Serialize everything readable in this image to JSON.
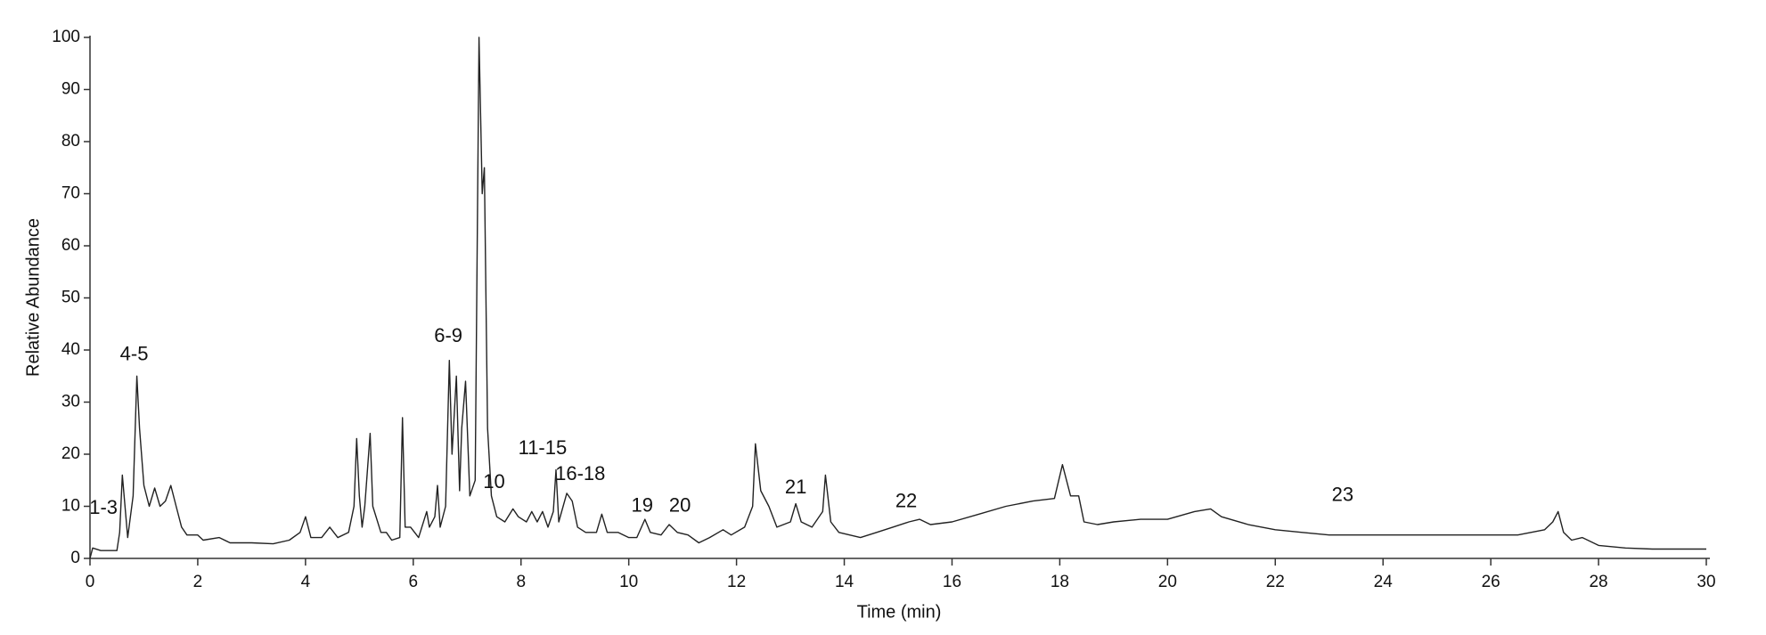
{
  "chart_data": {
    "type": "line",
    "xlabel": "Time (min)",
    "ylabel": "Relative Abundance",
    "color": "#222222",
    "x": [
      0,
      0.05,
      0.2,
      0.5,
      0.55,
      0.6,
      0.65,
      0.7,
      0.8,
      0.87,
      0.92,
      1.0,
      1.1,
      1.2,
      1.3,
      1.4,
      1.5,
      1.6,
      1.7,
      1.8,
      2.0,
      2.1,
      2.4,
      2.6,
      3.0,
      3.4,
      3.7,
      3.9,
      4.0,
      4.1,
      4.3,
      4.45,
      4.6,
      4.8,
      4.9,
      4.95,
      5.0,
      5.05,
      5.1,
      5.2,
      5.25,
      5.4,
      5.5,
      5.6,
      5.75,
      5.8,
      5.85,
      5.95,
      6.1,
      6.25,
      6.3,
      6.4,
      6.45,
      6.5,
      6.6,
      6.67,
      6.72,
      6.8,
      6.86,
      6.9,
      6.97,
      7.05,
      7.15,
      7.22,
      7.28,
      7.32,
      7.38,
      7.45,
      7.55,
      7.7,
      7.85,
      7.95,
      8.1,
      8.2,
      8.3,
      8.4,
      8.5,
      8.6,
      8.65,
      8.7,
      8.85,
      8.95,
      9.05,
      9.2,
      9.4,
      9.5,
      9.6,
      9.8,
      10.0,
      10.15,
      10.3,
      10.4,
      10.6,
      10.75,
      10.9,
      11.1,
      11.3,
      11.5,
      11.75,
      11.9,
      12.15,
      12.3,
      12.35,
      12.45,
      12.6,
      12.75,
      13.0,
      13.1,
      13.2,
      13.4,
      13.6,
      13.65,
      13.75,
      13.9,
      14.1,
      14.3,
      14.6,
      14.9,
      15.2,
      15.4,
      15.6,
      16.0,
      16.5,
      17.0,
      17.5,
      17.9,
      18.05,
      18.2,
      18.35,
      18.45,
      18.7,
      19.0,
      19.5,
      20.0,
      20.5,
      20.8,
      21.0,
      21.5,
      22.0,
      22.5,
      23.0,
      24.0,
      25.0,
      26.0,
      26.5,
      27.0,
      27.15,
      27.25,
      27.35,
      27.5,
      27.7,
      28.0,
      28.5,
      29.0,
      30.0
    ],
    "values": [
      0,
      2,
      1.5,
      1.5,
      5,
      16,
      10,
      4,
      12,
      35,
      25,
      14,
      10,
      13.5,
      10,
      11,
      14,
      10,
      6,
      4.5,
      4.5,
      3.5,
      4,
      3,
      3,
      2.8,
      3.5,
      5,
      8,
      4,
      4,
      6,
      4,
      5,
      10,
      23,
      12,
      6,
      10,
      24,
      10,
      5,
      5,
      3.5,
      4,
      27,
      6,
      6,
      4,
      9,
      6,
      8,
      14,
      6,
      10,
      38,
      20,
      35,
      13,
      25,
      34,
      12,
      15,
      100,
      70,
      75,
      25,
      12,
      8,
      7,
      9.5,
      8,
      7,
      9,
      7,
      9,
      6,
      9,
      17,
      7,
      12.5,
      11,
      6,
      5,
      5,
      8.5,
      5,
      5,
      4,
      4,
      7.5,
      5,
      4.5,
      6.5,
      5,
      4.5,
      3,
      4,
      5.5,
      4.5,
      6,
      10,
      22,
      13,
      10,
      6,
      7,
      10.5,
      7,
      6,
      9,
      16,
      7,
      5,
      4.5,
      4,
      5,
      6,
      7,
      7.5,
      6.5,
      7,
      8.5,
      10,
      11,
      11.5,
      18,
      12,
      12,
      7,
      6.5,
      7,
      7.5,
      7.5,
      9,
      9.5,
      8,
      6.5,
      5.5,
      5,
      4.5,
      4.5,
      4.5,
      4.5,
      4.5,
      5.5,
      7,
      9,
      5,
      3.5,
      4,
      2.5,
      2,
      1.8,
      1.8
    ],
    "xlim": [
      0,
      30
    ],
    "xticks": [
      0,
      2,
      4,
      6,
      8,
      10,
      12,
      14,
      16,
      18,
      20,
      22,
      24,
      26,
      28,
      30
    ],
    "ylim": [
      0,
      100
    ],
    "yticks": [
      0,
      10,
      20,
      30,
      40,
      50,
      60,
      70,
      80,
      90,
      100
    ],
    "annotations": [
      "1-3",
      "4-5",
      "6-9",
      "10",
      "11-15",
      "16-18",
      "19",
      "20",
      "21",
      "22",
      "23"
    ]
  }
}
